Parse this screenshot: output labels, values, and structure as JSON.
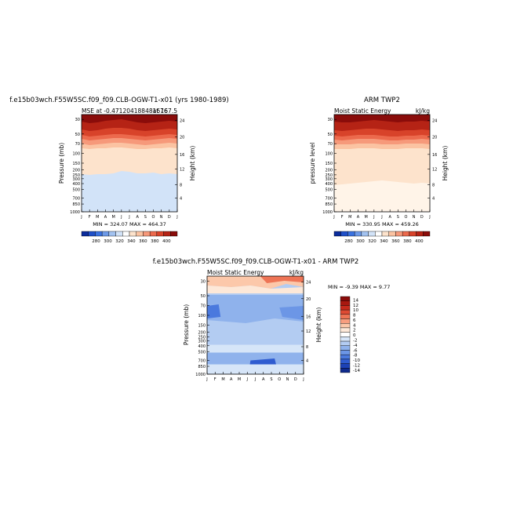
{
  "chart_data": [
    {
      "type": "heatmap",
      "title": "f.e15b03wch.F55W5SC.f09_f09.CLB-OGW-T1-x01 (yrs 1980-1989)",
      "subtitle_left": "MSE at -0.471204188481676",
      "subtitle_right": "at 167.5",
      "ylabel": "Pressure (mb)",
      "y2label": "Height (km)",
      "min_max_label": "MIN = 324.07 MAX = 464.37",
      "pressure_ticks": [
        "30",
        "50",
        "70",
        "100",
        "150",
        "200",
        "250",
        "300",
        "400",
        "500",
        "700",
        "850",
        "1000"
      ],
      "height_ticks": [
        "24",
        "20",
        "16",
        "12",
        "8",
        "4"
      ],
      "month_ticks": [
        "J",
        "F",
        "M",
        "A",
        "M",
        "J",
        "J",
        "A",
        "S",
        "O",
        "N",
        "D",
        "J"
      ],
      "colorbar_labels": [
        "280",
        "300",
        "320",
        "340",
        "360",
        "380",
        "400"
      ],
      "colorbar_colors": [
        "#0b2c9c",
        "#1f4fc8",
        "#3a72e0",
        "#6d9ae8",
        "#a2c2f0",
        "#d2e3f8",
        "#ffffff",
        "#fde3cc",
        "#fbc3a2",
        "#f6997a",
        "#ec6a4d",
        "#d8432a",
        "#b52315",
        "#8a0c0a"
      ],
      "layers": [
        {
          "fill": "#8a0c0a",
          "edge": [
            155,
            157,
            156,
            154,
            153,
            152,
            154,
            156,
            157,
            156,
            155,
            154,
            155
          ]
        },
        {
          "fill": "#b52315",
          "edge": [
            165,
            167,
            166,
            164,
            163,
            163,
            164,
            166,
            167,
            166,
            165,
            164,
            165
          ]
        },
        {
          "fill": "#d8432a",
          "edge": [
            172,
            174,
            173,
            172,
            171,
            171,
            172,
            173,
            174,
            173,
            172,
            171,
            172
          ]
        },
        {
          "fill": "#ec6a4d",
          "edge": [
            177,
            179,
            178,
            177,
            176,
            176,
            177,
            178,
            179,
            178,
            177,
            176,
            177
          ]
        },
        {
          "fill": "#f6997a",
          "edge": [
            183,
            185,
            184,
            183,
            182,
            182,
            183,
            184,
            185,
            184,
            183,
            182,
            183
          ]
        },
        {
          "fill": "#fbc3a2",
          "edge": [
            189,
            190,
            189,
            189,
            188,
            188,
            189,
            190,
            190,
            189,
            189,
            188,
            189
          ]
        },
        {
          "fill": "#fde3cc",
          "edge": [
            222,
            223,
            222,
            222,
            221,
            218,
            219,
            221,
            221,
            220,
            222,
            221,
            222
          ]
        },
        {
          "fill": "#d2e3f8",
          "edge": [
            262,
            258,
            263,
            260,
            256,
            254,
            252,
            251,
            250,
            252,
            251,
            252,
            253
          ]
        },
        {
          "fill": "#d2e3f8",
          "edge": [
            270,
            270,
            270,
            270,
            270,
            270,
            270,
            270,
            270,
            270,
            270,
            270,
            270
          ]
        }
      ]
    },
    {
      "type": "heatmap",
      "title": "ARM TWP2",
      "subtitle_left": "Moist Static Energy",
      "subtitle_right": "kJ/kg",
      "ylabel": "pressure level",
      "y2label": "Height (km)",
      "min_max_label": "MIN = 330.95 MAX = 459.26",
      "pressure_ticks": [
        "30",
        "50",
        "70",
        "100",
        "150",
        "200",
        "250",
        "300",
        "400",
        "500",
        "700",
        "850",
        "1000"
      ],
      "height_ticks": [
        "24",
        "20",
        "16",
        "12",
        "8",
        "4"
      ],
      "month_ticks": [
        "J",
        "F",
        "M",
        "A",
        "M",
        "J",
        "J",
        "A",
        "S",
        "O",
        "N",
        "D",
        "J"
      ],
      "colorbar_labels": [
        "280",
        "300",
        "320",
        "340",
        "360",
        "380",
        "400"
      ],
      "colorbar_colors": [
        "#0b2c9c",
        "#1f4fc8",
        "#3a72e0",
        "#6d9ae8",
        "#a2c2f0",
        "#d2e3f8",
        "#ffffff",
        "#fde3cc",
        "#fbc3a2",
        "#f6997a",
        "#ec6a4d",
        "#d8432a",
        "#b52315",
        "#8a0c0a"
      ],
      "layers": [
        {
          "fill": "#8a0c0a",
          "edge": [
            155,
            156,
            156,
            155,
            154,
            153,
            154,
            155,
            156,
            155,
            155,
            154,
            155
          ]
        },
        {
          "fill": "#b52315",
          "edge": [
            166,
            167,
            166,
            165,
            164,
            164,
            165,
            166,
            167,
            166,
            166,
            165,
            166
          ]
        },
        {
          "fill": "#d8432a",
          "edge": [
            173,
            174,
            173,
            172,
            172,
            172,
            173,
            174,
            174,
            173,
            173,
            172,
            173
          ]
        },
        {
          "fill": "#ec6a4d",
          "edge": [
            178,
            179,
            178,
            177,
            177,
            177,
            178,
            179,
            179,
            178,
            178,
            177,
            178
          ]
        },
        {
          "fill": "#f6997a",
          "edge": [
            184,
            184,
            184,
            183,
            183,
            183,
            184,
            184,
            184,
            183,
            183,
            183,
            184
          ]
        },
        {
          "fill": "#fbc3a2",
          "edge": [
            190,
            190,
            190,
            189,
            189,
            189,
            190,
            190,
            190,
            189,
            189,
            189,
            190
          ]
        },
        {
          "fill": "#fde3cc",
          "edge": [
            236,
            235,
            234,
            233,
            232,
            231,
            230,
            231,
            232,
            233,
            234,
            233,
            234
          ]
        },
        {
          "fill": "#fff4e8",
          "edge": [
            270,
            270,
            270,
            270,
            270,
            270,
            270,
            270,
            270,
            270,
            270,
            270,
            270
          ]
        }
      ]
    },
    {
      "type": "heatmap",
      "title": "f.e15b03wch.F55W5SC.f09_f09.CLB-OGW-T1-x01 - ARM TWP2",
      "subtitle_left": "Moist Static Energy",
      "subtitle_right": "kJ/kg",
      "ylabel": "Pressure (mb)",
      "y2label": "Height (km)",
      "min_max_label": "MIN = -9.39 MAX =   9.77",
      "pressure_ticks": [
        "30",
        "50",
        "70",
        "100",
        "150",
        "200",
        "250",
        "300",
        "400",
        "500",
        "700",
        "850",
        "1000"
      ],
      "height_ticks": [
        "24",
        "20",
        "16",
        "12",
        "8",
        "4"
      ],
      "month_ticks": [
        "J",
        "F",
        "M",
        "A",
        "M",
        "J",
        "J",
        "A",
        "S",
        "O",
        "N",
        "D",
        "J"
      ],
      "colorbar_labels": [
        "14",
        "12",
        "10",
        "8",
        "6",
        "4",
        "2",
        "0",
        "-2",
        "-4",
        "-6",
        "-8",
        "-10",
        "-12",
        "-14"
      ],
      "colorbar_colors": [
        "#8a0c0a",
        "#a81810",
        "#c62a1c",
        "#de4a33",
        "#ee7455",
        "#f89e7f",
        "#fcc8aa",
        "#fde8d8",
        "#ffffff",
        "#d6e5f8",
        "#b3ccf2",
        "#8fb2ec",
        "#6c96e6",
        "#4a79de",
        "#2f5cd0",
        "#1c42b6",
        "#0f2a8c"
      ]
    }
  ]
}
